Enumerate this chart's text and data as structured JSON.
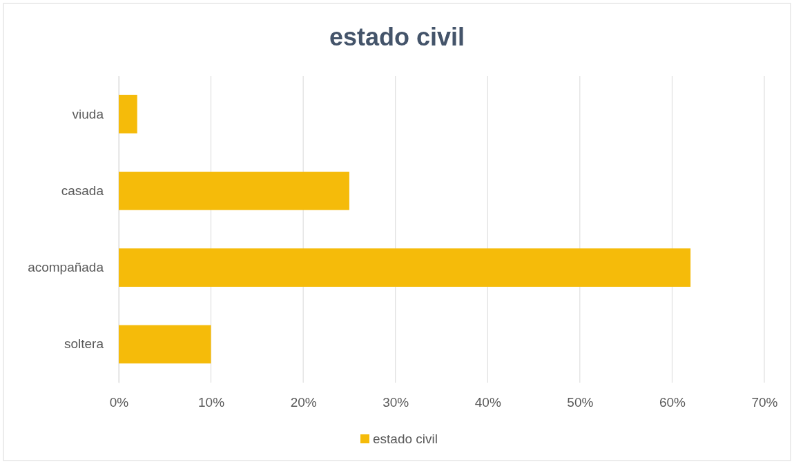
{
  "chart_data": {
    "type": "bar",
    "orientation": "horizontal",
    "title": "estado civil",
    "categories": [
      "viuda",
      "casada",
      "acompañada",
      "soltera"
    ],
    "series": [
      {
        "name": "estado civil",
        "color": "#f5bb0a",
        "values": [
          2,
          25,
          62,
          10
        ]
      }
    ],
    "xlim": [
      0,
      70
    ],
    "xticks": [
      {
        "value": 0,
        "label": "0%"
      },
      {
        "value": 10,
        "label": "10%"
      },
      {
        "value": 20,
        "label": "20%"
      },
      {
        "value": 30,
        "label": "30%"
      },
      {
        "value": 40,
        "label": "40%"
      },
      {
        "value": 50,
        "label": "50%"
      },
      {
        "value": 60,
        "label": "60%"
      },
      {
        "value": 70,
        "label": "70%"
      }
    ],
    "grid": "x",
    "legend": "bottom"
  }
}
